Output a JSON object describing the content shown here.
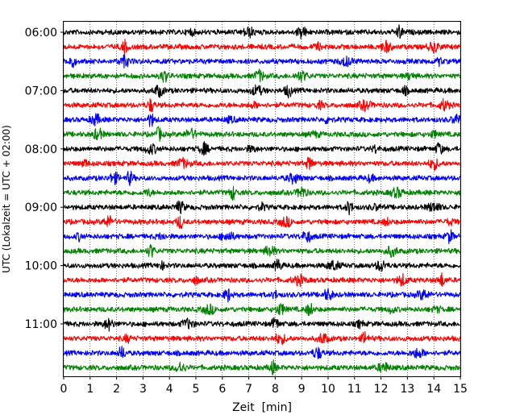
{
  "chart_data": {
    "type": "line",
    "title": "",
    "xlabel": "Zeit  [min]",
    "ylabel": "UTC (Lokalzeit = UTC + 02:00)",
    "xlim": [
      0,
      15
    ],
    "x_ticks": [
      "0",
      "1",
      "2",
      "3",
      "4",
      "5",
      "6",
      "7",
      "8",
      "9",
      "10",
      "11",
      "12",
      "13",
      "14",
      "15"
    ],
    "y_ticks": [
      "06:00",
      "07:00",
      "08:00",
      "09:00",
      "10:00",
      "11:00"
    ],
    "grid": "vertical dotted lines at each minute",
    "trace_colors": [
      "#000000",
      "#ff0000",
      "#0000ff",
      "#008000"
    ],
    "traces_start": "06:00",
    "trace_interval_minutes": 15,
    "trace_count": 24,
    "series": [
      {
        "start": "06:00",
        "color": "#000000",
        "events": [
          12.7,
          9.0,
          7.0,
          4.8
        ]
      },
      {
        "start": "06:15",
        "color": "#ff0000",
        "events": [
          2.3,
          12.2,
          14.0,
          9.6
        ]
      },
      {
        "start": "06:30",
        "color": "#0000ff",
        "events": [
          0.3,
          2.3,
          10.7,
          14.2
        ]
      },
      {
        "start": "06:45",
        "color": "#008000",
        "events": [
          3.8,
          7.4,
          9.0,
          13.1
        ]
      },
      {
        "start": "07:00",
        "color": "#000000",
        "events": [
          8.5,
          3.6,
          7.3,
          12.9
        ]
      },
      {
        "start": "07:15",
        "color": "#ff0000",
        "events": [
          3.3,
          14.4,
          11.4,
          9.7,
          7.2
        ]
      },
      {
        "start": "07:30",
        "color": "#0000ff",
        "events": [
          3.3,
          1.2,
          14.9,
          10.0,
          6.3
        ]
      },
      {
        "start": "07:45",
        "color": "#008000",
        "events": [
          3.6,
          1.3,
          4.8,
          14.0,
          9.5
        ]
      },
      {
        "start": "08:00",
        "color": "#000000",
        "events": [
          14.2,
          5.3,
          3.3,
          11.8,
          7.1
        ]
      },
      {
        "start": "08:15",
        "color": "#ff0000",
        "events": [
          9.3,
          14.0,
          4.5,
          0.8
        ]
      },
      {
        "start": "08:30",
        "color": "#0000ff",
        "events": [
          2.5,
          1.9,
          8.7,
          11.6
        ]
      },
      {
        "start": "08:45",
        "color": "#008000",
        "events": [
          6.4,
          9.0,
          12.6,
          3.2
        ]
      },
      {
        "start": "09:00",
        "color": "#000000",
        "events": [
          10.8,
          4.4,
          14.0,
          7.5,
          11.8
        ]
      },
      {
        "start": "09:15",
        "color": "#ff0000",
        "events": [
          4.4,
          1.7,
          8.4,
          12.2,
          14.6
        ]
      },
      {
        "start": "09:30",
        "color": "#0000ff",
        "events": [
          14.6,
          9.2,
          6.2,
          0.6,
          3.7
        ]
      },
      {
        "start": "09:45",
        "color": "#008000",
        "events": [
          3.3,
          7.8,
          12.4
        ]
      },
      {
        "start": "10:00",
        "color": "#000000",
        "events": [
          8.1,
          12.0,
          10.2,
          3.7
        ]
      },
      {
        "start": "10:15",
        "color": "#ff0000",
        "events": [
          14.3,
          12.8,
          8.9,
          5.0
        ]
      },
      {
        "start": "10:30",
        "color": "#0000ff",
        "events": [
          6.2,
          10.0,
          13.6,
          8.0
        ]
      },
      {
        "start": "10:45",
        "color": "#008000",
        "events": [
          9.3,
          8.2,
          5.5,
          12.4,
          14.1
        ]
      },
      {
        "start": "11:00",
        "color": "#000000",
        "events": [
          8.0,
          1.7,
          4.7,
          11.2
        ]
      },
      {
        "start": "11:15",
        "color": "#ff0000",
        "events": [
          11.4,
          9.8,
          8.2,
          2.4
        ]
      },
      {
        "start": "11:30",
        "color": "#0000ff",
        "events": [
          2.2,
          9.6,
          13.4
        ]
      },
      {
        "start": "11:45",
        "color": "#008000",
        "events": [
          7.9,
          4.4,
          12.1
        ]
      }
    ]
  }
}
